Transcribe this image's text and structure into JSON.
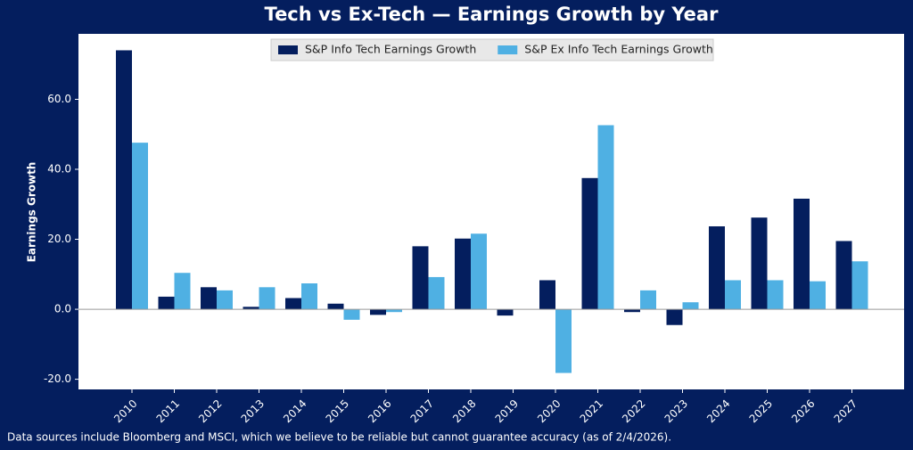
{
  "chart_data": {
    "type": "bar",
    "title": "Tech vs Ex-Tech — Earnings Growth by Year",
    "y_label": "Earnings Growth",
    "footnote": "Data sources include Bloomberg and MSCI, which we believe to be reliable but cannot guarantee accuracy (as of 2/4/2026).",
    "categories": [
      "2010",
      "2011",
      "2012",
      "2013",
      "2014",
      "2015",
      "2016",
      "2017",
      "2018",
      "2019",
      "2020",
      "2021",
      "2022",
      "2023",
      "2024",
      "2025",
      "2026",
      "2027"
    ],
    "series": [
      {
        "name": "S&P Info Tech Earnings Growth",
        "color": "#041e5e",
        "values": [
          74,
          3.6,
          6.3,
          0.7,
          3.2,
          1.6,
          -1.6,
          18,
          20.2,
          -1.8,
          8.3,
          37.5,
          -0.8,
          -4.5,
          23.7,
          26.2,
          31.6,
          19.5
        ]
      },
      {
        "name": "S&P Ex Info Tech Earnings Growth",
        "color": "#4fb0e3",
        "values": [
          47.6,
          10.4,
          5.4,
          6.3,
          7.4,
          -3,
          -0.8,
          9.2,
          21.6,
          0,
          -18.2,
          52.6,
          5.4,
          2.0,
          8.3,
          8.3,
          8.0,
          13.7
        ]
      }
    ],
    "ylim": [
      -22.9,
      78.7
    ],
    "yticks": [
      {
        "value": -20,
        "label": "-20.0"
      },
      {
        "value": 0,
        "label": "0.0"
      },
      {
        "value": 20,
        "label": "20.0"
      },
      {
        "value": 40,
        "label": "40.0"
      },
      {
        "value": 60,
        "label": "60.0"
      }
    ],
    "legend": "upper center"
  }
}
